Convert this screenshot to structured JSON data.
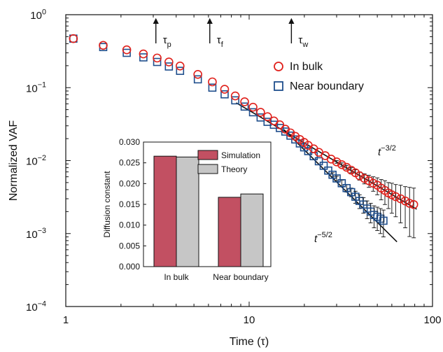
{
  "chart_data": [
    {
      "type": "scatter",
      "xlabel": "Time (τ)",
      "ylabel": "Normalized VAF",
      "xscale": "log",
      "yscale": "log",
      "xlim": [
        1,
        100
      ],
      "ylim": [
        0.0001,
        1
      ],
      "x_ticks": [
        {
          "value": 1,
          "label": "1"
        },
        {
          "value": 10,
          "label": "10"
        },
        {
          "value": 100,
          "label": "100"
        }
      ],
      "y_ticks": [
        {
          "value": 0.0001,
          "base": "10",
          "exp": "−4"
        },
        {
          "value": 0.001,
          "base": "10",
          "exp": "−3"
        },
        {
          "value": 0.01,
          "base": "10",
          "exp": "−2"
        },
        {
          "value": 0.1,
          "base": "10",
          "exp": "−1"
        },
        {
          "value": 1,
          "base": "10",
          "exp": "0"
        }
      ],
      "legend_position": "right",
      "series": [
        {
          "name": "In bulk",
          "marker": "circle",
          "color": "#e0201b",
          "x": [
            1.1,
            1.6,
            2.15,
            2.65,
            3.15,
            3.65,
            4.2,
            5.25,
            6.3,
            7.35,
            8.4,
            9.45,
            10.5,
            11.55,
            12.6,
            13.65,
            14.7,
            15.75,
            16.8,
            17.85,
            18.9,
            19.95,
            21,
            22.5,
            24,
            26,
            28,
            30,
            32,
            34,
            36,
            38,
            40,
            42.5,
            45,
            47.5,
            50,
            52.5,
            55,
            57.5,
            60,
            63,
            67,
            71,
            75,
            79
          ],
          "y": [
            0.47,
            0.38,
            0.33,
            0.29,
            0.255,
            0.225,
            0.198,
            0.152,
            0.12,
            0.095,
            0.077,
            0.064,
            0.054,
            0.046,
            0.04,
            0.035,
            0.031,
            0.027,
            0.024,
            0.0215,
            0.0195,
            0.0178,
            0.0162,
            0.0145,
            0.013,
            0.0117,
            0.0105,
            0.0096,
            0.0088,
            0.0081,
            0.0074,
            0.0068,
            0.0062,
            0.0057,
            0.0053,
            0.0049,
            0.0046,
            0.0042,
            0.0039,
            0.0036,
            0.0034,
            0.0032,
            0.003,
            0.0028,
            0.0026,
            0.0025
          ],
          "error": [
            0,
            0,
            0,
            0,
            0,
            0,
            0,
            0,
            0,
            0,
            0,
            0,
            0,
            0,
            0,
            0,
            0,
            0,
            0,
            0,
            0,
            0,
            0,
            0,
            0,
            0,
            0,
            0.0004,
            0.0005,
            0.0005,
            0.0006,
            0.0007,
            0.0008,
            0.0009,
            0.001,
            0.0011,
            0.0012,
            0.0013,
            0.0014,
            0.0014,
            0.0015,
            0.0015,
            0.0016,
            0.0016,
            0.0017,
            0.0017
          ]
        },
        {
          "name": "Near boundary",
          "marker": "square",
          "color": "#1f4e8c",
          "x": [
            1.1,
            1.6,
            2.15,
            2.65,
            3.15,
            3.65,
            4.2,
            5.25,
            6.3,
            7.35,
            8.4,
            9.45,
            10.5,
            11.55,
            12.6,
            13.65,
            14.7,
            15.75,
            16.8,
            17.85,
            18.9,
            19.95,
            21,
            22.5,
            24,
            25.5,
            27,
            28.5,
            30,
            32,
            34,
            36,
            38,
            40,
            42,
            44,
            46,
            48,
            50,
            52,
            54
          ],
          "y": [
            0.47,
            0.36,
            0.3,
            0.26,
            0.225,
            0.195,
            0.17,
            0.13,
            0.1,
            0.081,
            0.067,
            0.055,
            0.046,
            0.039,
            0.034,
            0.031,
            0.028,
            0.025,
            0.022,
            0.0195,
            0.0172,
            0.0152,
            0.0135,
            0.0115,
            0.0098,
            0.0085,
            0.0073,
            0.0064,
            0.0057,
            0.0049,
            0.0042,
            0.0037,
            0.0032,
            0.0028,
            0.0025,
            0.0022,
            0.002,
            0.0018,
            0.0017,
            0.0016,
            0.0015
          ],
          "error": [
            0,
            0,
            0,
            0,
            0,
            0,
            0,
            0,
            0,
            0,
            0,
            0,
            0,
            0,
            0,
            0,
            0,
            0,
            0,
            0,
            0,
            0,
            0,
            0,
            0,
            0,
            0,
            0.0004,
            0.0004,
            0.0005,
            0.0005,
            0.0005,
            0.0006,
            0.0006,
            0.0006,
            0.0006,
            0.0006,
            0.0006,
            0.0006,
            0.0006,
            0.0006
          ]
        }
      ],
      "fit_lines": [
        {
          "label_base": "t",
          "label_exp": "−3/2",
          "x": [
            8.5,
            82
          ],
          "y": [
            0.062,
            0.00216
          ]
        },
        {
          "label_base": "t",
          "label_exp": "−5/2",
          "x": [
            15.5,
            64
          ],
          "y": [
            0.0265,
            0.00077
          ]
        }
      ],
      "annotations": [
        {
          "symbol": "τ",
          "sub": "p",
          "x": 3.1
        },
        {
          "symbol": "τ",
          "sub": "f",
          "x": 6.1
        },
        {
          "symbol": "τ",
          "sub": "w",
          "x": 17
        }
      ]
    },
    {
      "type": "bar",
      "ylabel": "Diffusion constant",
      "ylim": [
        0,
        0.03
      ],
      "y_ticks": [
        "0.000",
        "0.005",
        "0.010",
        "0.015",
        "0.020",
        "0.025",
        "0.030"
      ],
      "categories": [
        "In bulk",
        "Near boundary"
      ],
      "legend_position": "top-right",
      "series": [
        {
          "name": "Simulation",
          "color": "#c25062",
          "values": [
            0.0266,
            0.0167
          ]
        },
        {
          "name": "Theory",
          "color": "#c6c6c6",
          "values": [
            0.0264,
            0.0175
          ]
        }
      ]
    }
  ]
}
